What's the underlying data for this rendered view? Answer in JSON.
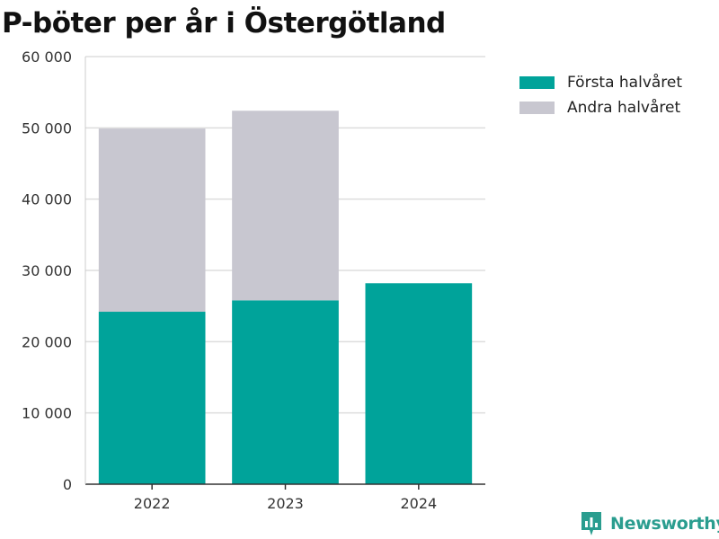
{
  "title": "P-böter per år i Östergötland",
  "colors": {
    "first_half": "#00a39a",
    "second_half": "#c8c7d0",
    "grid": "#dddddd",
    "axis": "#333333",
    "brand": "#2a9d8f"
  },
  "legend": {
    "items": [
      {
        "label": "Första halvåret",
        "color": "#00a39a"
      },
      {
        "label": "Andra halvåret",
        "color": "#c8c7d0"
      }
    ],
    "position": "top-right"
  },
  "brand": {
    "name": "Newsworthy",
    "icon": "bar-chart-logo-icon"
  },
  "chart_data": {
    "type": "bar",
    "stacked": true,
    "categories": [
      "2022",
      "2023",
      "2024"
    ],
    "series": [
      {
        "name": "Första halvåret",
        "values": [
          24200,
          25800,
          28200
        ],
        "color": "#00a39a"
      },
      {
        "name": "Andra halvåret",
        "values": [
          25700,
          26600,
          null
        ],
        "color": "#c8c7d0"
      }
    ],
    "ylim": [
      0,
      60000
    ],
    "yticks": [
      0,
      10000,
      20000,
      30000,
      40000,
      50000,
      60000
    ],
    "ytick_labels": [
      "0",
      "10 000",
      "20 000",
      "30 000",
      "40 000",
      "50 000",
      "60 000"
    ],
    "grid": true,
    "xlabel": "",
    "ylabel": ""
  }
}
